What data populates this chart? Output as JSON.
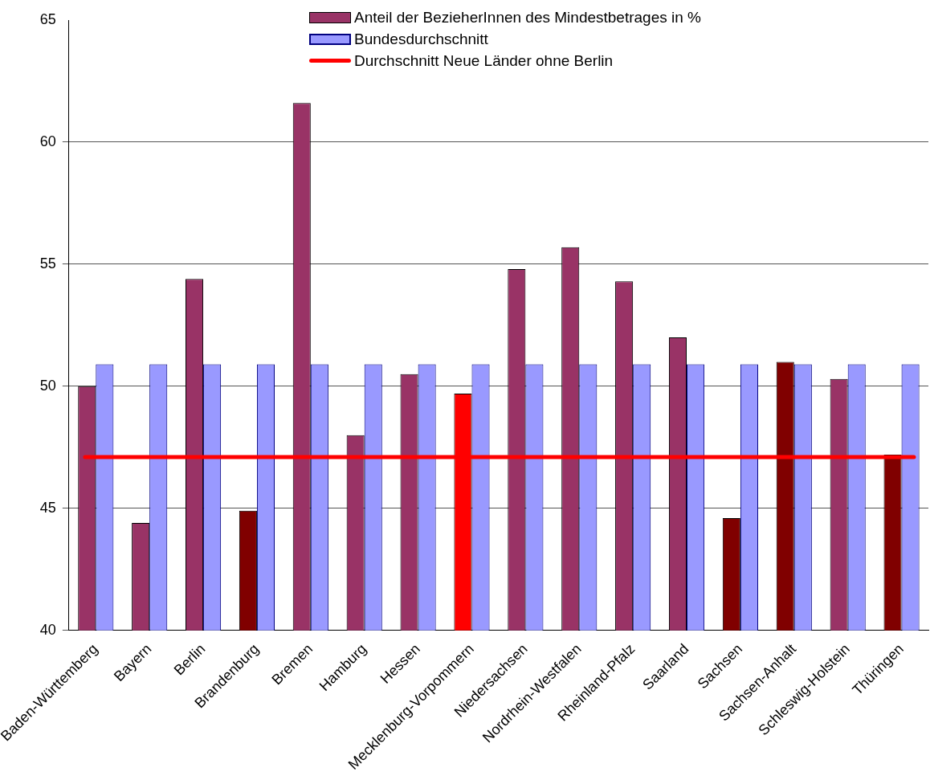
{
  "chart_data": {
    "type": "bar",
    "categories": [
      "Baden-Württemberg",
      "Bayern",
      "Berlin",
      "Brandenburg",
      "Bremen",
      "Hamburg",
      "Hessen",
      "Mecklenburg-Vorpommern",
      "Niedersachsen",
      "Nordrhein-Westfalen",
      "Rheinland-Pfalz",
      "Saarland",
      "Sachsen",
      "Sachsen-Anhalt",
      "Schleswig-Holstein",
      "Thüringen"
    ],
    "series": [
      {
        "name": "Anteil der BezieherInnen des Mindestbetrages in %",
        "color": "#993366",
        "colors": [
          "#993366",
          "#993366",
          "#993366",
          "#800000",
          "#993366",
          "#993366",
          "#993366",
          "#ff0000",
          "#993366",
          "#993366",
          "#993366",
          "#993366",
          "#800000",
          "#800000",
          "#993366",
          "#800000"
        ],
        "values": [
          50.0,
          44.4,
          54.4,
          44.9,
          61.6,
          48.0,
          50.5,
          49.7,
          54.8,
          55.7,
          54.3,
          52.0,
          44.6,
          51.0,
          50.3,
          47.2
        ]
      },
      {
        "name": "Bundesdurchschnitt",
        "color": "#9999ff",
        "values": [
          50.9,
          50.9,
          50.9,
          50.9,
          50.9,
          50.9,
          50.9,
          50.9,
          50.9,
          50.9,
          50.9,
          50.9,
          50.9,
          50.9,
          50.9,
          50.9
        ]
      }
    ],
    "ref_lines": [
      {
        "axis": "y",
        "value": 47.1,
        "label": "Durchschnitt Neue Länder ohne Berlin",
        "color": "#ff0000"
      }
    ],
    "ylim": [
      40,
      65
    ],
    "yticks": [
      40,
      45,
      50,
      55,
      60,
      65
    ],
    "grid": "y",
    "legend": "top"
  }
}
